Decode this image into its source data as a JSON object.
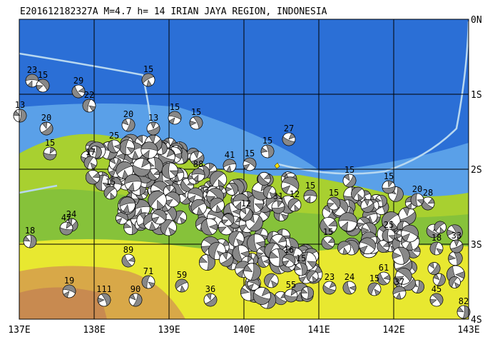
{
  "title": "E201612182327A M=4.7 h= 14 IRIAN JAYA REGION, INDONESIA",
  "lon_labels": [
    "137E",
    "138E",
    "139E",
    "140E",
    "141E",
    "142E",
    "143E"
  ],
  "lat_labels": [
    "0N",
    "1S",
    "2S",
    "3S",
    "4S"
  ],
  "event_labels": [
    "23",
    "15",
    "13",
    "20",
    "15",
    "29",
    "22",
    "15",
    "15",
    "15",
    "20",
    "13",
    "27",
    "25",
    "17",
    "41",
    "15",
    "15",
    "15",
    "15",
    "28",
    "20",
    "12",
    "15",
    "15",
    "18",
    "24",
    "47",
    "89",
    "71",
    "59",
    "19",
    "111",
    "90",
    "33",
    "23",
    "24",
    "15",
    "37",
    "16",
    "15",
    "12",
    "31",
    "15",
    "25",
    "15",
    "88",
    "45",
    "82",
    "36",
    "55",
    "61",
    "18"
  ]
}
